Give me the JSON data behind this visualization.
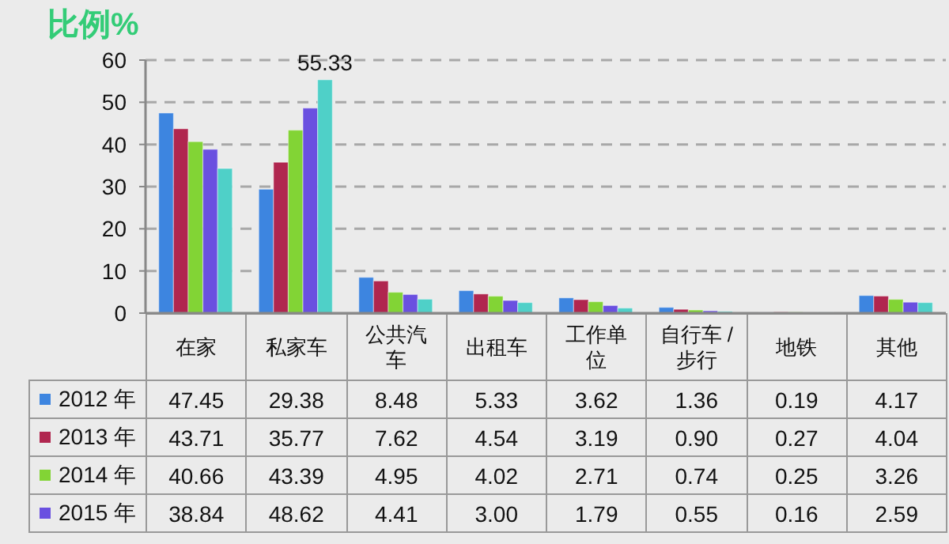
{
  "chart_data": {
    "type": "bar",
    "title": "比例%",
    "categories": [
      "在家",
      "私家车",
      "公共汽车",
      "出租车",
      "工作单位",
      "自行车 / 步行",
      "地铁",
      "其他"
    ],
    "series": [
      {
        "name": "2012 年",
        "color": "#3d85e0",
        "values": [
          47.45,
          29.38,
          8.48,
          5.33,
          3.62,
          1.36,
          0.19,
          4.17
        ],
        "value_labels": [
          "47.45",
          "29.38",
          "8.48",
          "5.33",
          "3.62",
          "1.36",
          "0.19",
          "4.17"
        ]
      },
      {
        "name": "2013 年",
        "color": "#b0264f",
        "values": [
          43.71,
          35.77,
          7.62,
          4.54,
          3.19,
          0.9,
          0.27,
          4.04
        ],
        "value_labels": [
          "43.71",
          "35.77",
          "7.62",
          "4.54",
          "3.19",
          "0.90",
          "0.27",
          "4.04"
        ]
      },
      {
        "name": "2014 年",
        "color": "#82d435",
        "values": [
          40.66,
          43.39,
          4.95,
          4.02,
          2.71,
          0.74,
          0.25,
          3.26
        ],
        "value_labels": [
          "40.66",
          "43.39",
          "4.95",
          "4.02",
          "2.71",
          "0.74",
          "0.25",
          "3.26"
        ]
      },
      {
        "name": "2015 年",
        "color": "#6a50e0",
        "values": [
          38.84,
          48.62,
          4.41,
          3.0,
          1.79,
          0.55,
          0.16,
          2.59
        ],
        "value_labels": [
          "38.84",
          "48.62",
          "4.41",
          "3.00",
          "1.79",
          "0.55",
          "0.16",
          "2.59"
        ]
      },
      {
        "color": "#4fd0c8",
        "values": [
          34.3,
          55.33,
          3.3,
          2.5,
          1.2,
          0.4,
          0.2,
          2.5
        ],
        "value_labels": [
          null,
          "55.33",
          null,
          null,
          null,
          null,
          null,
          null
        ]
      }
    ],
    "ylim": [
      0,
      60
    ],
    "yticks": [
      0,
      10,
      20,
      30,
      40,
      50,
      60
    ],
    "grid": "y",
    "legend": "bottom"
  }
}
